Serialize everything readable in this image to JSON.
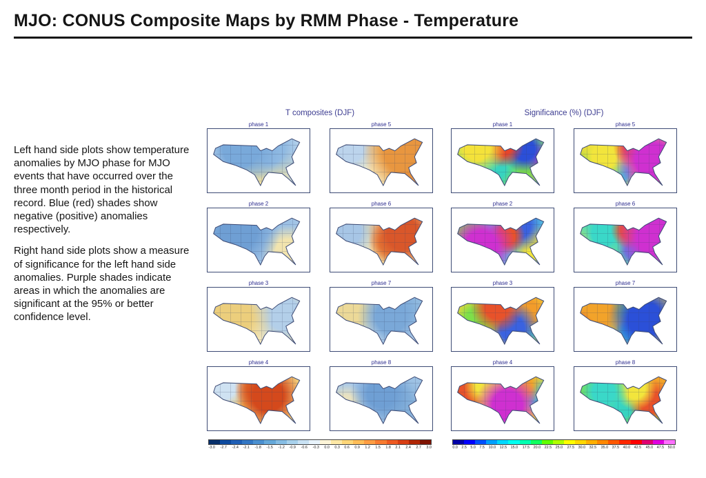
{
  "page": {
    "title": "MJO: CONUS Composite Maps by RMM Phase - Temperature"
  },
  "description": {
    "para1": "Left hand side plots show temperature anomalies by MJO phase for MJO events that have occurred over the three month period in the historical record. Blue (red) shades show negative (positive) anomalies respectively.",
    "para2": "Right hand side plots show a measure of significance for the left hand side anomalies. Purple shades indicate areas in which the anomalies are significant at the 95% or better confidence level."
  },
  "figure": {
    "groups": [
      {
        "id": "t-composites",
        "title": "T composites (DJF)",
        "panels": [
          {
            "label": "phase 1",
            "base": "#b9d4ec",
            "blobs": [
              [
                32,
                30,
                50,
                "#79a9da"
              ],
              [
                62,
                32,
                42,
                "#8fb9e2"
              ],
              [
                55,
                68,
                52,
                "#f0e0a0"
              ],
              [
                14,
                56,
                30,
                "#cfe2f2"
              ]
            ]
          },
          {
            "label": "phase 5",
            "base": "#f4dc98",
            "blobs": [
              [
                72,
                36,
                50,
                "#e8963f"
              ],
              [
                82,
                52,
                34,
                "#de7727"
              ],
              [
                18,
                30,
                34,
                "#bcd4ec"
              ],
              [
                40,
                72,
                34,
                "#f7ecc0"
              ]
            ]
          },
          {
            "label": "phase 2",
            "base": "#a9c9e8",
            "blobs": [
              [
                30,
                36,
                52,
                "#6f9fd4"
              ],
              [
                14,
                62,
                34,
                "#85b1dc"
              ],
              [
                80,
                70,
                30,
                "#f2e4ae"
              ],
              [
                68,
                28,
                34,
                "#9cc0e4"
              ]
            ]
          },
          {
            "label": "phase 6",
            "base": "#f1d896",
            "blobs": [
              [
                72,
                40,
                44,
                "#d9572a"
              ],
              [
                58,
                56,
                32,
                "#e8883c"
              ],
              [
                14,
                36,
                36,
                "#a7c6e6"
              ],
              [
                34,
                72,
                28,
                "#f6e7b4"
              ]
            ]
          },
          {
            "label": "phase 3",
            "base": "#f2e0a4",
            "blobs": [
              [
                24,
                46,
                48,
                "#ecce7c"
              ],
              [
                76,
                42,
                42,
                "#b3cfe9"
              ],
              [
                55,
                28,
                30,
                "#cfe0f0"
              ],
              [
                44,
                76,
                28,
                "#f6ecc6"
              ]
            ]
          },
          {
            "label": "phase 7",
            "base": "#b6d0ea",
            "blobs": [
              [
                60,
                46,
                50,
                "#7aa8d8"
              ],
              [
                18,
                40,
                38,
                "#ecd998"
              ],
              [
                80,
                28,
                28,
                "#93bce0"
              ],
              [
                40,
                72,
                28,
                "#d8e8f4"
              ]
            ]
          },
          {
            "label": "phase 4",
            "base": "#f3d17c",
            "blobs": [
              [
                60,
                46,
                50,
                "#d4491c"
              ],
              [
                48,
                32,
                34,
                "#e4762e"
              ],
              [
                13,
                30,
                30,
                "#cfe2f2"
              ],
              [
                26,
                66,
                28,
                "#f0c661"
              ]
            ]
          },
          {
            "label": "phase 8",
            "base": "#aac9e8",
            "blobs": [
              [
                50,
                42,
                52,
                "#6f9fd4"
              ],
              [
                70,
                60,
                34,
                "#84b0da"
              ],
              [
                14,
                62,
                24,
                "#e9e2c0"
              ],
              [
                80,
                28,
                26,
                "#9ec2e4"
              ]
            ]
          }
        ],
        "colorbar": {
          "colors": [
            "#08306b",
            "#0d4a9e",
            "#1f5fb6",
            "#3377c4",
            "#4b90d0",
            "#66a9da",
            "#86bde4",
            "#a8d1ec",
            "#c9e2f4",
            "#e8f3fb",
            "#fdf5d8",
            "#fde8a6",
            "#fdd678",
            "#febd58",
            "#fd9d43",
            "#f87b30",
            "#ee5a21",
            "#d83e13",
            "#b02605",
            "#7f1301"
          ],
          "ticks": [
            "-3.0",
            "-2.7",
            "-2.4",
            "-2.1",
            "-1.8",
            "-1.5",
            "-1.2",
            "-0.9",
            "-0.6",
            "-0.3",
            "0.0",
            "0.3",
            "0.6",
            "0.9",
            "1.2",
            "1.5",
            "1.8",
            "2.1",
            "2.4",
            "2.7",
            "3.0"
          ]
        }
      },
      {
        "id": "significance",
        "title": "Significance (%) (DJF)",
        "panels": [
          {
            "label": "phase 1",
            "base": "#8ce06a",
            "blobs": [
              [
                24,
                28,
                34,
                "#f4e23a"
              ],
              [
                50,
                26,
                32,
                "#e8442a"
              ],
              [
                72,
                32,
                28,
                "#2b4fd8"
              ],
              [
                40,
                62,
                40,
                "#37d3c0"
              ],
              [
                66,
                70,
                30,
                "#7de04a"
              ],
              [
                86,
                54,
                22,
                "#d837c8"
              ]
            ]
          },
          {
            "label": "phase 5",
            "base": "#f0d53a",
            "blobs": [
              [
                78,
                50,
                46,
                "#cf30d0"
              ],
              [
                58,
                28,
                28,
                "#e8522a"
              ],
              [
                28,
                44,
                34,
                "#f2e53c"
              ],
              [
                18,
                66,
                28,
                "#6fdc52"
              ],
              [
                45,
                72,
                24,
                "#3ac8d8"
              ]
            ]
          },
          {
            "label": "phase 2",
            "base": "#58c8e0",
            "blobs": [
              [
                28,
                62,
                44,
                "#cf30d0"
              ],
              [
                54,
                44,
                30,
                "#e8522a"
              ],
              [
                66,
                28,
                34,
                "#3a62e0"
              ],
              [
                82,
                62,
                26,
                "#f2e53c"
              ],
              [
                14,
                30,
                24,
                "#7de04a"
              ]
            ]
          },
          {
            "label": "phase 6",
            "base": "#6fdc9a",
            "blobs": [
              [
                80,
                46,
                46,
                "#cf30d0"
              ],
              [
                54,
                34,
                28,
                "#e8522a"
              ],
              [
                28,
                40,
                34,
                "#3ad8c8"
              ],
              [
                18,
                62,
                26,
                "#f2e53c"
              ],
              [
                58,
                68,
                24,
                "#4a8ae0"
              ]
            ]
          },
          {
            "label": "phase 3",
            "base": "#f2d53c",
            "blobs": [
              [
                44,
                30,
                38,
                "#e8522a"
              ],
              [
                24,
                52,
                30,
                "#7de04a"
              ],
              [
                60,
                66,
                38,
                "#3a62e0"
              ],
              [
                76,
                38,
                28,
                "#f29c2a"
              ],
              [
                86,
                62,
                20,
                "#37d3c0"
              ]
            ]
          },
          {
            "label": "phase 7",
            "base": "#f0cf3a",
            "blobs": [
              [
                70,
                50,
                50,
                "#2b50d8"
              ],
              [
                24,
                34,
                32,
                "#f2a32a"
              ],
              [
                14,
                62,
                24,
                "#e8522a"
              ],
              [
                46,
                28,
                26,
                "#7de04a"
              ],
              [
                56,
                72,
                24,
                "#3ac8d8"
              ]
            ]
          },
          {
            "label": "phase 4",
            "base": "#e8d83c",
            "blobs": [
              [
                55,
                62,
                50,
                "#cf30d0"
              ],
              [
                34,
                28,
                30,
                "#f2e53c"
              ],
              [
                14,
                42,
                24,
                "#e8522a"
              ],
              [
                70,
                28,
                26,
                "#f2a32a"
              ],
              [
                86,
                46,
                20,
                "#3ac8d8"
              ]
            ]
          },
          {
            "label": "phase 8",
            "base": "#7de04a",
            "blobs": [
              [
                28,
                40,
                32,
                "#3ad8c8"
              ],
              [
                60,
                34,
                30,
                "#f2e53c"
              ],
              [
                76,
                56,
                28,
                "#e8522a"
              ],
              [
                48,
                66,
                28,
                "#37d3c0"
              ],
              [
                85,
                28,
                20,
                "#f2a32a"
              ]
            ]
          }
        ],
        "colorbar": {
          "colors": [
            "#0000a8",
            "#0000ff",
            "#0050ff",
            "#00a0ff",
            "#00d8ff",
            "#00fff0",
            "#00ffb0",
            "#10ff60",
            "#60ff00",
            "#b0ff00",
            "#ffff00",
            "#ffd800",
            "#ffb000",
            "#ff8800",
            "#ff5800",
            "#ff2800",
            "#ff0000",
            "#e00070",
            "#e000e0",
            "#ff70ff"
          ],
          "ticks": [
            "0.0",
            "2.5",
            "5.0",
            "7.5",
            "10.0",
            "12.5",
            "15.0",
            "17.5",
            "20.0",
            "22.5",
            "25.0",
            "27.5",
            "30.0",
            "32.5",
            "35.0",
            "37.5",
            "40.0",
            "42.5",
            "45.0",
            "47.5",
            "50.0"
          ]
        }
      }
    ]
  }
}
